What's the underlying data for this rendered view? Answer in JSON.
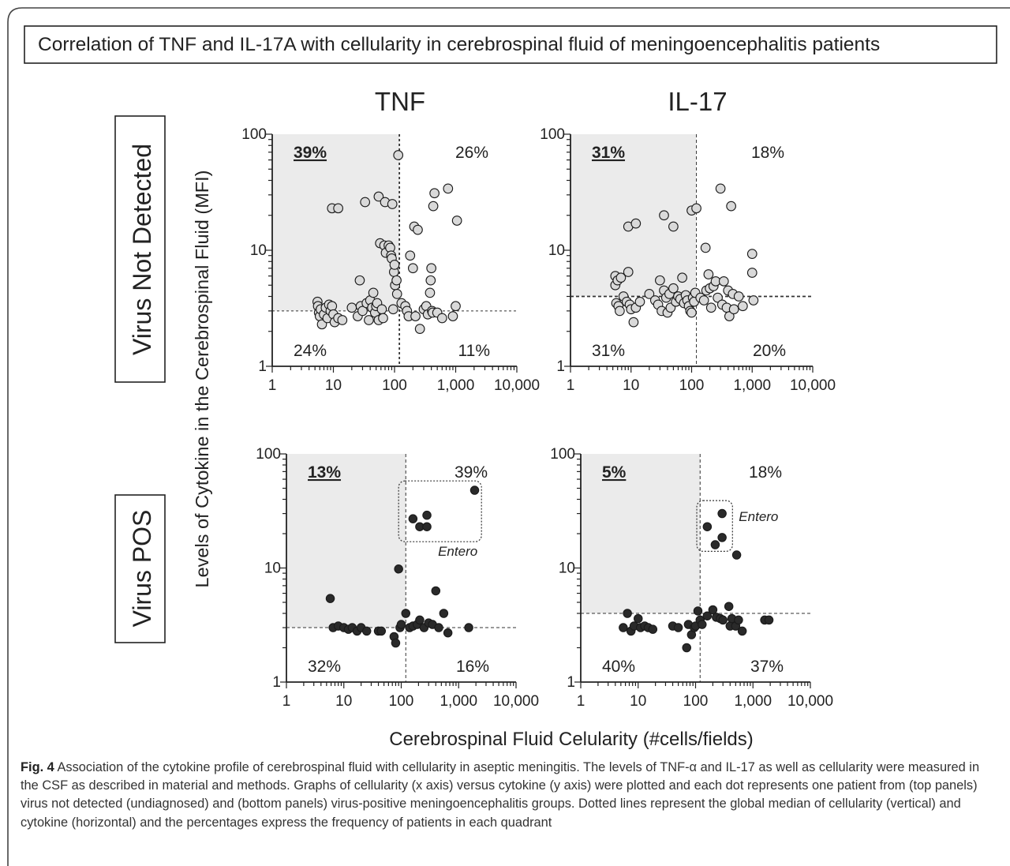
{
  "figure": {
    "title": "Correlation of TNF and IL-17A with cellularity in cerebrospinal fluid of meningoencephalitis patients",
    "col_labels": [
      "TNF",
      "IL-17"
    ],
    "row_labels": [
      "Virus Not Detected",
      "Virus POS"
    ],
    "y_label": "Levels of Cytokine in the Cerebrospinal Fluid (MFI)",
    "x_label": "Cerebrospinal Fluid  Celularity (#cells/fields)",
    "caption_lead": "Fig. 4",
    "caption_text": "Association of the cytokine profile of cerebrospinal fluid with cellularity in aseptic meningitis. The levels of TNF-α and IL-17 as well as cellularity were measured in the CSF as described in material and methods. Graphs of cellularity (x axis) versus cytokine (y axis) were plotted and each dot represents one patient from (top panels) virus not detected (undiagnosed) and (bottom panels) virus-positive meningoencephalitis groups. Dotted lines represent the global median of cellularity (vertical) and cytokine (horizontal) and the percentages express the frequency of patients in each quadrant"
  },
  "colors": {
    "open_marker_fill": "#d9d9d9",
    "filled_marker_fill": "#2a2a2a",
    "quadrant_shade": "#ebebeb",
    "axis": "#222222"
  },
  "chart_data": [
    {
      "type": "scatter",
      "panel": "TNF / Virus Not Detected",
      "x_scale": "log",
      "y_scale": "log",
      "xlim": [
        1,
        10000
      ],
      "ylim": [
        1,
        100
      ],
      "x_ticks": [
        "1",
        "10",
        "100",
        "1,000",
        "10,000"
      ],
      "y_ticks": [
        "1",
        "10",
        "100"
      ],
      "marker": "open",
      "median_x": 120,
      "median_y": 3,
      "quadrants": {
        "upper_left": "39%",
        "upper_right": "26%",
        "lower_left": "24%",
        "lower_right": "11%"
      },
      "highlight_quadrant": "upper_left",
      "points": [
        [
          5.5,
          3.6
        ],
        [
          5.6,
          3.3
        ],
        [
          5.8,
          2.9
        ],
        [
          6,
          2.7
        ],
        [
          6.2,
          3.1
        ],
        [
          6.5,
          2.3
        ],
        [
          7,
          2.8
        ],
        [
          7.5,
          3.2
        ],
        [
          8,
          2.6
        ],
        [
          8.5,
          3.4
        ],
        [
          9,
          3.0
        ],
        [
          9.5,
          3.3
        ],
        [
          10,
          2.8
        ],
        [
          10.5,
          2.4
        ],
        [
          12,
          2.6
        ],
        [
          14,
          2.5
        ],
        [
          9.5,
          23
        ],
        [
          12,
          23
        ],
        [
          20,
          3.2
        ],
        [
          25,
          2.7
        ],
        [
          27,
          5.5
        ],
        [
          28,
          3.3
        ],
        [
          30,
          3.0
        ],
        [
          33,
          26
        ],
        [
          35,
          3.5
        ],
        [
          38,
          2.5
        ],
        [
          40,
          3.7
        ],
        [
          43,
          3.2
        ],
        [
          45,
          4.3
        ],
        [
          48,
          2.9
        ],
        [
          50,
          3.3
        ],
        [
          52,
          3.5
        ],
        [
          55,
          2.5
        ],
        [
          55,
          29
        ],
        [
          58,
          11.5
        ],
        [
          62,
          3.1
        ],
        [
          65,
          2.6
        ],
        [
          68,
          11
        ],
        [
          70,
          26
        ],
        [
          72,
          9.5
        ],
        [
          80,
          11
        ],
        [
          85,
          10.5
        ],
        [
          88,
          9
        ],
        [
          90,
          8.5
        ],
        [
          92,
          25
        ],
        [
          95,
          3.1
        ],
        [
          98,
          6.5
        ],
        [
          100,
          7.5
        ],
        [
          102,
          5
        ],
        [
          108,
          5.5
        ],
        [
          110,
          4.2
        ],
        [
          115,
          66
        ],
        [
          130,
          3.5
        ],
        [
          150,
          3.3
        ],
        [
          160,
          3.0
        ],
        [
          170,
          2.7
        ],
        [
          180,
          9
        ],
        [
          200,
          7
        ],
        [
          210,
          16
        ],
        [
          220,
          2.7
        ],
        [
          240,
          15
        ],
        [
          260,
          2.1
        ],
        [
          300,
          3.1
        ],
        [
          330,
          3.3
        ],
        [
          350,
          2.8
        ],
        [
          380,
          4.3
        ],
        [
          390,
          5.5
        ],
        [
          400,
          7
        ],
        [
          410,
          3.0
        ],
        [
          420,
          2.9
        ],
        [
          430,
          24
        ],
        [
          450,
          31
        ],
        [
          500,
          2.9
        ],
        [
          600,
          2.6
        ],
        [
          750,
          34
        ],
        [
          900,
          2.7
        ],
        [
          1000,
          3.3
        ],
        [
          1050,
          18
        ]
      ]
    },
    {
      "type": "scatter",
      "panel": "IL-17 / Virus Not Detected",
      "x_scale": "log",
      "y_scale": "log",
      "xlim": [
        1,
        10000
      ],
      "ylim": [
        1,
        100
      ],
      "x_ticks": [
        "1",
        "10",
        "100",
        "1,000",
        "10,000"
      ],
      "y_ticks": [
        "1",
        "10",
        "100"
      ],
      "marker": "open",
      "median_x": 120,
      "median_y": 4,
      "quadrants": {
        "upper_left": "31%",
        "upper_right": "18%",
        "lower_left": "31%",
        "lower_right": "20%"
      },
      "highlight_quadrant": "upper_left",
      "points": [
        [
          5.5,
          6.0
        ],
        [
          5.5,
          5.0
        ],
        [
          5.7,
          3.5
        ],
        [
          6.0,
          5.5
        ],
        [
          6.2,
          3.3
        ],
        [
          6.5,
          3.0
        ],
        [
          6.8,
          5.8
        ],
        [
          7.5,
          4.0
        ],
        [
          8.5,
          3.6
        ],
        [
          9.0,
          6.5
        ],
        [
          9.5,
          3.4
        ],
        [
          10,
          3.1
        ],
        [
          11,
          2.4
        ],
        [
          12,
          3.2
        ],
        [
          14,
          3.6
        ],
        [
          9,
          16
        ],
        [
          12,
          17
        ],
        [
          20,
          4.2
        ],
        [
          25,
          3.7
        ],
        [
          28,
          3.4
        ],
        [
          30,
          5.5
        ],
        [
          32,
          3.0
        ],
        [
          35,
          4.5
        ],
        [
          35,
          20
        ],
        [
          38,
          3.9
        ],
        [
          40,
          2.9
        ],
        [
          43,
          4.2
        ],
        [
          45,
          3.2
        ],
        [
          50,
          4.7
        ],
        [
          50,
          16
        ],
        [
          55,
          3.6
        ],
        [
          60,
          4.0
        ],
        [
          65,
          3.8
        ],
        [
          70,
          5.8
        ],
        [
          75,
          3.5
        ],
        [
          80,
          4.1
        ],
        [
          85,
          3.7
        ],
        [
          90,
          3.3
        ],
        [
          95,
          3.0
        ],
        [
          100,
          2.9
        ],
        [
          100,
          22
        ],
        [
          105,
          3.9
        ],
        [
          110,
          3.6
        ],
        [
          115,
          4.3
        ],
        [
          120,
          23
        ],
        [
          140,
          3.9
        ],
        [
          160,
          3.7
        ],
        [
          170,
          10.5
        ],
        [
          175,
          4.5
        ],
        [
          190,
          6.2
        ],
        [
          200,
          4.7
        ],
        [
          210,
          3.2
        ],
        [
          230,
          4.9
        ],
        [
          250,
          5.4
        ],
        [
          270,
          3.9
        ],
        [
          300,
          34
        ],
        [
          320,
          3.4
        ],
        [
          340,
          5.4
        ],
        [
          380,
          3.2
        ],
        [
          400,
          4.5
        ],
        [
          420,
          2.7
        ],
        [
          450,
          24
        ],
        [
          480,
          4.2
        ],
        [
          500,
          3.1
        ],
        [
          600,
          4.0
        ],
        [
          700,
          3.3
        ],
        [
          1000,
          9.3
        ],
        [
          1000,
          6.4
        ],
        [
          1050,
          3.7
        ]
      ]
    },
    {
      "type": "scatter",
      "panel": "TNF / Virus POS",
      "x_scale": "log",
      "y_scale": "log",
      "xlim": [
        1,
        10000
      ],
      "ylim": [
        1,
        100
      ],
      "x_ticks": [
        "1",
        "10",
        "100",
        "1,000",
        "10,000"
      ],
      "y_ticks": [
        "1",
        "10",
        "100"
      ],
      "marker": "filled",
      "median_x": 120,
      "median_y": 3,
      "quadrants": {
        "upper_left": "13%",
        "upper_right": "39%",
        "lower_left": "32%",
        "lower_right": "16%"
      },
      "highlight_quadrant": "upper_left",
      "group_box": {
        "label": "Entero",
        "x_range": [
          90,
          2500
        ],
        "y_range": [
          17,
          58
        ]
      },
      "points": [
        [
          5.8,
          5.4
        ],
        [
          6.5,
          3.0
        ],
        [
          8,
          3.1
        ],
        [
          10,
          3.0
        ],
        [
          12,
          2.9
        ],
        [
          14,
          3.0
        ],
        [
          17,
          2.8
        ],
        [
          20,
          3.0
        ],
        [
          25,
          2.8
        ],
        [
          40,
          2.8
        ],
        [
          45,
          2.8
        ],
        [
          75,
          2.5
        ],
        [
          80,
          2.2
        ],
        [
          90,
          9.8
        ],
        [
          95,
          3.0
        ],
        [
          100,
          3.2
        ],
        [
          120,
          4.0
        ],
        [
          140,
          3.0
        ],
        [
          160,
          3.1
        ],
        [
          190,
          3.2
        ],
        [
          210,
          3.5
        ],
        [
          250,
          3.0
        ],
        [
          300,
          3.3
        ],
        [
          350,
          3.2
        ],
        [
          400,
          6.3
        ],
        [
          450,
          3.0
        ],
        [
          550,
          4.0
        ],
        [
          650,
          2.7
        ],
        [
          1500,
          3.0
        ],
        [
          160,
          27
        ],
        [
          210,
          23
        ],
        [
          280,
          23
        ],
        [
          280,
          29
        ],
        [
          1900,
          48
        ]
      ]
    },
    {
      "type": "scatter",
      "panel": "IL-17 / Virus POS",
      "x_scale": "log",
      "y_scale": "log",
      "xlim": [
        1,
        10000
      ],
      "ylim": [
        1,
        100
      ],
      "x_ticks": [
        "1",
        "10",
        "100",
        "1,000",
        "10,000"
      ],
      "y_ticks": [
        "1",
        "10",
        "100"
      ],
      "marker": "filled",
      "median_x": 120,
      "median_y": 4,
      "quadrants": {
        "upper_left": "5%",
        "upper_right": "18%",
        "lower_left": "40%",
        "lower_right": "37%"
      },
      "highlight_quadrant": "upper_left",
      "group_box": {
        "label": "Entero",
        "x_range": [
          105,
          440
        ],
        "y_range": [
          14,
          39
        ]
      },
      "points": [
        [
          5.5,
          3.0
        ],
        [
          6.5,
          4.0
        ],
        [
          7.5,
          2.8
        ],
        [
          8.5,
          3.1
        ],
        [
          10,
          3.6
        ],
        [
          11,
          3.0
        ],
        [
          13,
          3.1
        ],
        [
          15,
          3.0
        ],
        [
          18,
          2.9
        ],
        [
          40,
          3.1
        ],
        [
          50,
          3.0
        ],
        [
          70,
          2.0
        ],
        [
          75,
          3.2
        ],
        [
          85,
          2.6
        ],
        [
          95,
          3.0
        ],
        [
          100,
          3.1
        ],
        [
          110,
          4.2
        ],
        [
          120,
          3.5
        ],
        [
          130,
          3.2
        ],
        [
          160,
          3.8
        ],
        [
          200,
          4.3
        ],
        [
          230,
          3.7
        ],
        [
          270,
          3.6
        ],
        [
          300,
          3.5
        ],
        [
          380,
          4.6
        ],
        [
          400,
          3.1
        ],
        [
          430,
          3.6
        ],
        [
          500,
          3.1
        ],
        [
          560,
          3.5
        ],
        [
          650,
          2.8
        ],
        [
          1600,
          3.5
        ],
        [
          1900,
          3.5
        ],
        [
          160,
          23
        ],
        [
          220,
          16
        ],
        [
          290,
          18.5
        ],
        [
          290,
          30
        ],
        [
          520,
          13
        ]
      ]
    }
  ]
}
